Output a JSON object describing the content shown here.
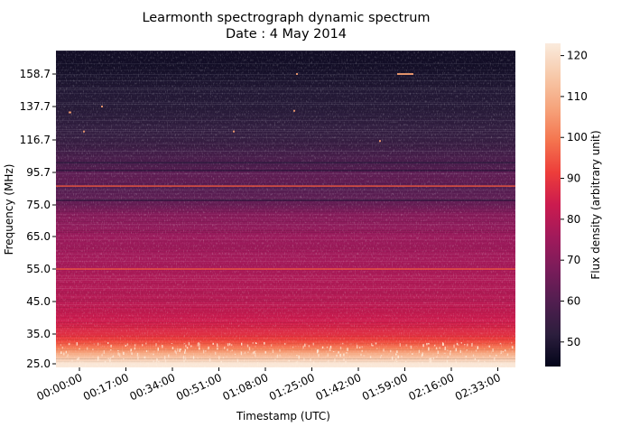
{
  "chart_data": {
    "type": "heatmap",
    "title": "Learmonth spectrograph dynamic spectrum",
    "subtitle": "Date : 4 May 2014",
    "xlabel": "Timestamp (UTC)",
    "ylabel": "Frequency (MHz)",
    "colorbar_label": "Flux density (arbitrary unit)",
    "x_ticks": [
      "00:00:00",
      "00:17:00",
      "00:34:00",
      "00:51:00",
      "01:08:00",
      "01:25:00",
      "01:42:00",
      "01:59:00",
      "02:16:00",
      "02:33:00"
    ],
    "y_ticks": [
      "25.0",
      "35.0",
      "45.0",
      "55.0",
      "65.0",
      "75.0",
      "95.7",
      "116.7",
      "137.7",
      "158.7"
    ],
    "colorbar_ticks": [
      50,
      60,
      70,
      80,
      90,
      100,
      110,
      120
    ],
    "colorbar_range": [
      44,
      123
    ],
    "colormap": [
      "#03051a",
      "#2c1e3d",
      "#511e50",
      "#7a1c5a",
      "#a11a5b",
      "#cb1b4f",
      "#ed3d3a",
      "#f4754f",
      "#f6a47c",
      "#f7c9aa",
      "#faebdd"
    ],
    "frequency_profile_mhz": [
      [
        25,
        122
      ],
      [
        26,
        118
      ],
      [
        27.5,
        112
      ],
      [
        28.5,
        108
      ],
      [
        30,
        102
      ],
      [
        31.5,
        96
      ],
      [
        33,
        92
      ],
      [
        35,
        88
      ],
      [
        37,
        86
      ],
      [
        39,
        84
      ],
      [
        42,
        82
      ],
      [
        45,
        80
      ],
      [
        48,
        79
      ],
      [
        52,
        78
      ],
      [
        55,
        77
      ],
      [
        58,
        76
      ],
      [
        62,
        75
      ],
      [
        65,
        74
      ],
      [
        68,
        72
      ],
      [
        72,
        70
      ],
      [
        75,
        64
      ],
      [
        80,
        62
      ],
      [
        86,
        60
      ],
      [
        90,
        63
      ],
      [
        95.7,
        62
      ],
      [
        100,
        59
      ],
      [
        105,
        58
      ],
      [
        110,
        56
      ],
      [
        116.7,
        54
      ],
      [
        125,
        53
      ],
      [
        137.7,
        51
      ],
      [
        148,
        50
      ],
      [
        158.7,
        48
      ],
      [
        166,
        47
      ]
    ],
    "bright_lines_mhz": [
      55.0,
      87.0
    ]
  }
}
